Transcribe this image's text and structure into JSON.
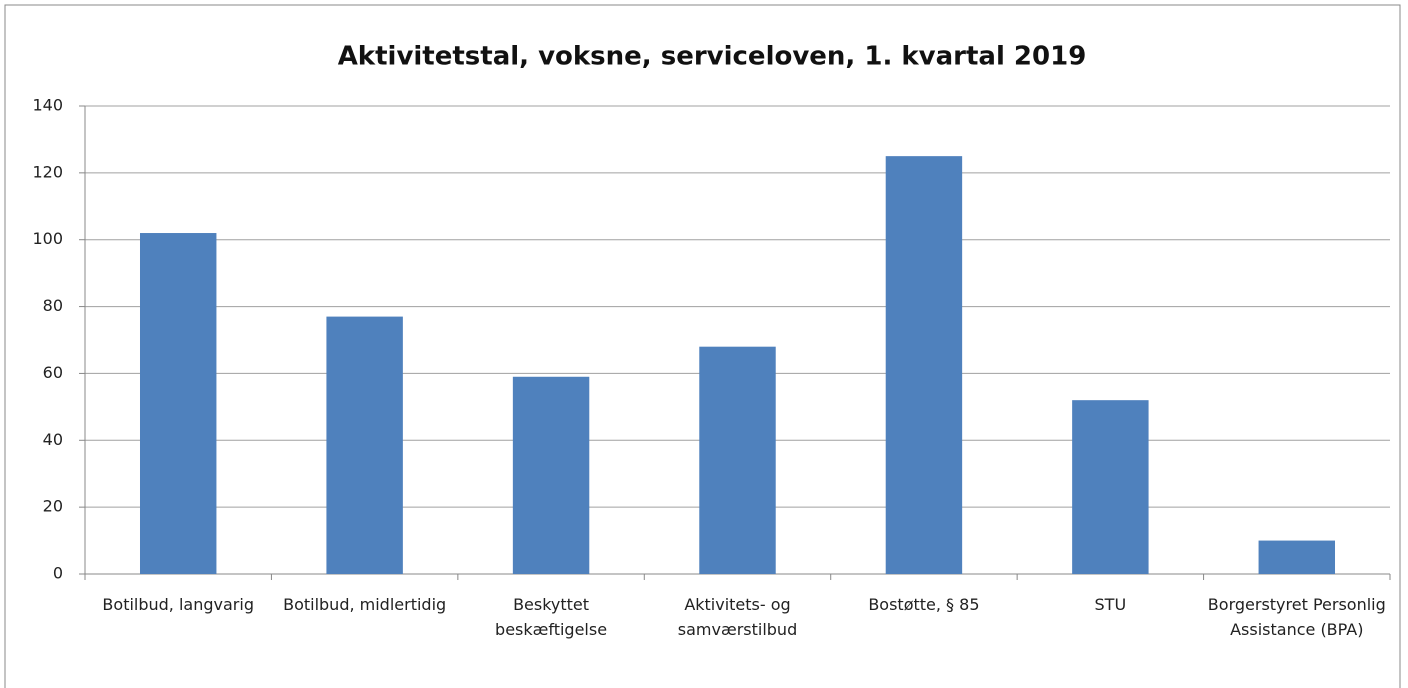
{
  "chart_data": {
    "type": "bar",
    "title": "Aktivitetstal,  voksne, serviceloven, 1. kvartal 2019",
    "categories": [
      "Botilbud, langvarig",
      "Botilbud, midlertidig",
      "Beskyttet beskæftigelse",
      "Aktivitets- og samværstilbud",
      "Bostøtte, § 85",
      "STU",
      "Borgerstyret Personlig Assistance (BPA)"
    ],
    "values": [
      102,
      77,
      59,
      68,
      125,
      52,
      10
    ],
    "color": "#4f81bd",
    "ylim": [
      0,
      140
    ],
    "yticks": [
      0,
      20,
      40,
      60,
      80,
      100,
      120,
      140
    ],
    "grid": true
  }
}
